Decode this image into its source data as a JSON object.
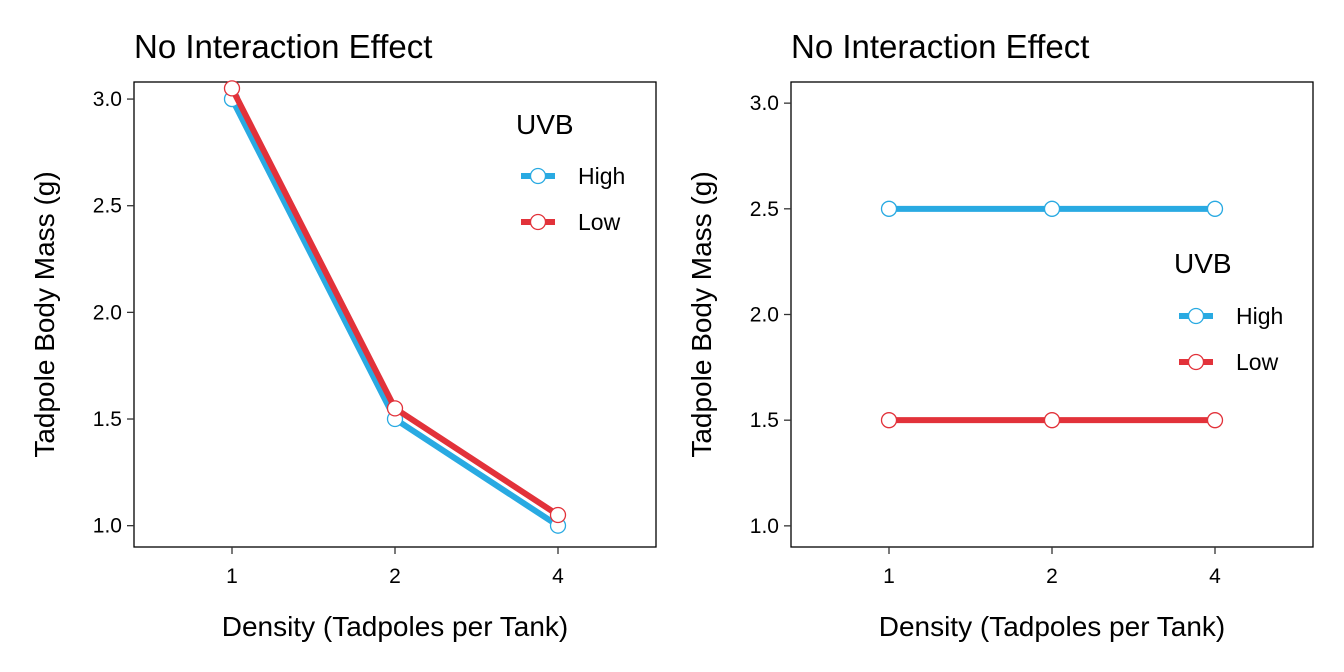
{
  "chart_data": [
    {
      "type": "line",
      "title": "No Interaction Effect",
      "xlabel": "Density (Tadpoles per Tank)",
      "ylabel": "Tadpole Body Mass (g)",
      "categories": [
        "1",
        "2",
        "4"
      ],
      "ylim": [
        0.9,
        3.08
      ],
      "yticks": [
        1.0,
        1.5,
        2.0,
        2.5,
        3.0
      ],
      "ytick_labels": [
        "1.0",
        "1.5",
        "2.0",
        "2.5",
        "3.0"
      ],
      "grid": false,
      "legend": {
        "title": "UVB",
        "position": "top-right"
      },
      "series": [
        {
          "name": "High",
          "color": "#29aae2",
          "values": [
            3.0,
            1.5,
            1.0
          ]
        },
        {
          "name": "Low",
          "color": "#e2323a",
          "values": [
            3.05,
            1.55,
            1.05
          ]
        }
      ]
    },
    {
      "type": "line",
      "title": "No Interaction Effect",
      "xlabel": "Density (Tadpoles per Tank)",
      "ylabel": "Tadpole Body Mass (g)",
      "categories": [
        "1",
        "2",
        "4"
      ],
      "ylim": [
        0.9,
        3.1
      ],
      "yticks": [
        1.0,
        1.5,
        2.0,
        2.5,
        3.0
      ],
      "ytick_labels": [
        "1.0",
        "1.5",
        "2.0",
        "2.5",
        "3.0"
      ],
      "grid": false,
      "legend": {
        "title": "UVB",
        "position": "right"
      },
      "series": [
        {
          "name": "High",
          "color": "#29aae2",
          "values": [
            2.5,
            2.5,
            2.5
          ]
        },
        {
          "name": "Low",
          "color": "#e2323a",
          "values": [
            1.5,
            1.5,
            1.5
          ]
        }
      ]
    }
  ]
}
